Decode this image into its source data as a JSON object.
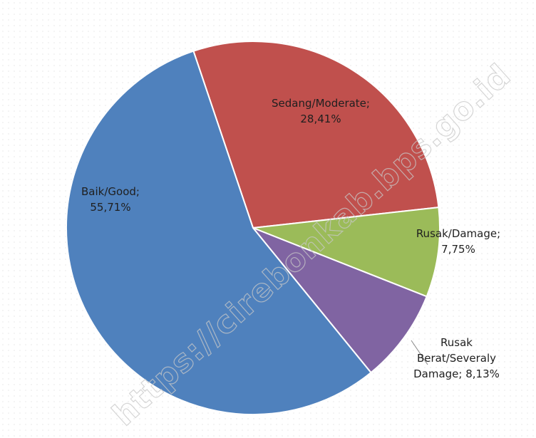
{
  "chart_data": {
    "type": "pie",
    "categories": [
      "Sedang/Moderate;",
      "Rusak/Damage;",
      "Rusak Berat/Severaly Damage;",
      "Baik/Good;"
    ],
    "values": [
      28.41,
      7.75,
      8.13,
      55.71
    ],
    "value_labels": [
      "28,41%",
      "7,75%",
      "8,13%",
      "55,71%"
    ],
    "colors": [
      "#c0504d",
      "#9bbb59",
      "#8064a2",
      "#4f81bd"
    ],
    "watermark": "https://cirebonkab.bps.go.id"
  }
}
